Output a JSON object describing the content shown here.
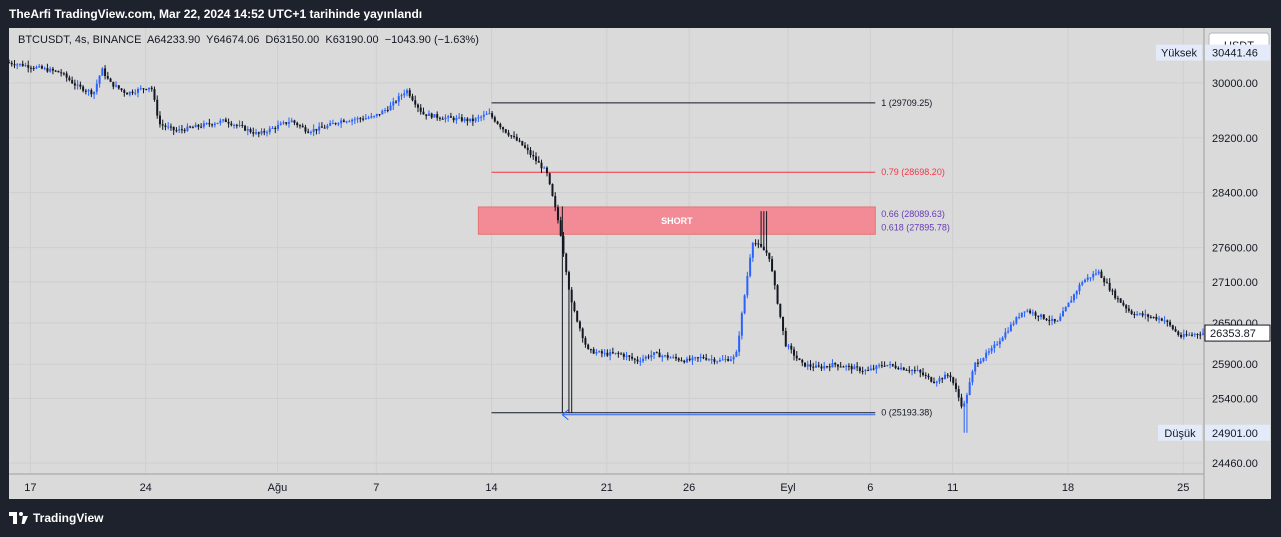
{
  "header": {
    "published_text": "TheArfi TradingView.com, Mar 22, 2024 14:52 UTC+1 tarihinde yayınlandı"
  },
  "legend": {
    "text": "BTCUSDT, 4s, BINANCE  A64233.90  Y64674.06  D63150.00  K63190.00  −1043.90 (−1.63%)"
  },
  "footer": {
    "brand": "TradingView"
  },
  "colors": {
    "background": "#dadada",
    "frame": "#1e222d",
    "candle_up": "#2962ff",
    "candle_down": "#131722",
    "fib_079": "#f23645",
    "fib_066": "#673ab7",
    "short_zone": "#f28b95",
    "grid": "#cfcfcf"
  },
  "chart_data": {
    "type": "candlestick",
    "symbol": "BTCUSDT",
    "interval": "4s",
    "exchange": "BINANCE",
    "currency_label": "USDT",
    "ylim": [
      24300,
      30800
    ],
    "y_ticks": [
      24460,
      24901,
      25400,
      25900,
      26353.87,
      26500,
      27100,
      27600,
      28400,
      29200,
      30000,
      30441.46
    ],
    "y_tick_labels": [
      "24460.00",
      "25400.00",
      "25900.00",
      "26500.00",
      "27100.00",
      "27600.00",
      "28400.00",
      "29200.00",
      "30000.00"
    ],
    "x_ticks": [
      {
        "day": 0,
        "label": "17"
      },
      {
        "day": 7,
        "label": "24"
      },
      {
        "day": 15,
        "label": "Ağu"
      },
      {
        "day": 21,
        "label": "7"
      },
      {
        "day": 28,
        "label": "14"
      },
      {
        "day": 35,
        "label": "21"
      },
      {
        "day": 40,
        "label": "26"
      },
      {
        "day": 46,
        "label": "Eyl"
      },
      {
        "day": 51,
        "label": "6"
      },
      {
        "day": 56,
        "label": "11"
      },
      {
        "day": 63,
        "label": "18"
      },
      {
        "day": 70,
        "label": "25"
      }
    ],
    "x_range_days": [
      -1.3,
      71.2
    ],
    "price_path": [
      [
        -1.3,
        30300
      ],
      [
        0,
        30250
      ],
      [
        2,
        30150
      ],
      [
        3,
        29950
      ],
      [
        4,
        29850
      ],
      [
        4.5,
        30200
      ],
      [
        5,
        30000
      ],
      [
        6,
        29850
      ],
      [
        7.5,
        29950
      ],
      [
        8,
        29400
      ],
      [
        9,
        29300
      ],
      [
        10,
        29350
      ],
      [
        12,
        29450
      ],
      [
        14,
        29250
      ],
      [
        15,
        29350
      ],
      [
        16,
        29450
      ],
      [
        17,
        29300
      ],
      [
        18,
        29350
      ],
      [
        19,
        29450
      ],
      [
        21,
        29500
      ],
      [
        22,
        29650
      ],
      [
        23,
        29900
      ],
      [
        24,
        29550
      ],
      [
        25,
        29500
      ],
      [
        27,
        29450
      ],
      [
        28,
        29550
      ],
      [
        29,
        29300
      ],
      [
        30,
        29100
      ],
      [
        31.5,
        28700
      ],
      [
        32.3,
        27900
      ],
      [
        33,
        26800
      ],
      [
        34,
        26100
      ],
      [
        35,
        26050
      ],
      [
        36,
        26050
      ],
      [
        37,
        25950
      ],
      [
        38,
        26050
      ],
      [
        39,
        26000
      ],
      [
        40,
        25950
      ],
      [
        41,
        26000
      ],
      [
        42,
        25950
      ],
      [
        43,
        26000
      ],
      [
        44,
        27700
      ],
      [
        45,
        27500
      ],
      [
        46,
        26200
      ],
      [
        47,
        25900
      ],
      [
        48,
        25850
      ],
      [
        49,
        25900
      ],
      [
        50,
        25850
      ],
      [
        51,
        25800
      ],
      [
        52,
        25900
      ],
      [
        53,
        25850
      ],
      [
        54,
        25800
      ],
      [
        55,
        25650
      ],
      [
        56,
        25750
      ],
      [
        56.8,
        25250
      ],
      [
        57.5,
        25900
      ],
      [
        58.5,
        26100
      ],
      [
        59.5,
        26400
      ],
      [
        60.5,
        26700
      ],
      [
        61.5,
        26600
      ],
      [
        62.5,
        26500
      ],
      [
        63,
        26700
      ],
      [
        64,
        27100
      ],
      [
        65,
        27250
      ],
      [
        66,
        26900
      ],
      [
        67,
        26650
      ],
      [
        68,
        26600
      ],
      [
        69,
        26550
      ],
      [
        70,
        26300
      ],
      [
        71.2,
        26353.87
      ]
    ],
    "fib_levels": [
      {
        "ratio": "1",
        "price": 29709.25,
        "label": "1 (29709.25)",
        "color": "#131722"
      },
      {
        "ratio": "0.79",
        "price": 28698.2,
        "label": "0.79 (28698.20)",
        "color": "#f23645"
      },
      {
        "ratio": "0.66",
        "price": 28089.63,
        "label": "0.66 (28089.63)",
        "color": "#673ab7"
      },
      {
        "ratio": "0.618",
        "price": 27895.78,
        "label": "0.618 (27895.78)",
        "color": "#673ab7"
      },
      {
        "ratio": "0",
        "price": 25193.38,
        "label": "0 (25193.38)",
        "color": "#131722"
      }
    ],
    "fib_days": [
      28,
      51.3
    ],
    "short_zone": {
      "label": "SHORT",
      "price_top": 28089.63,
      "price_bottom": 27895.78,
      "days": [
        27.2,
        51.3
      ]
    },
    "last_price": {
      "price": 26353.87,
      "label": "26353.87"
    },
    "high_marker": {
      "label": "Yüksek",
      "price": 30441.46,
      "value_label": "30441.46"
    },
    "low_marker": {
      "label": "Düşük",
      "price": 24901.0,
      "value_label": "24901.00"
    }
  }
}
